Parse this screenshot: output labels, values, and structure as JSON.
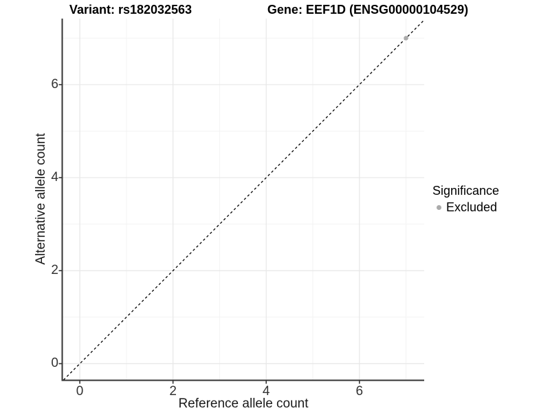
{
  "figure": {
    "title_left": "Variant: rs182032563",
    "title_right": "Gene: EEF1D (ENSG00000104529)"
  },
  "chart_data": {
    "type": "scatter",
    "xlabel": "Reference allele count",
    "ylabel": "Alternative allele count",
    "xlim": [
      -0.37,
      7.39
    ],
    "ylim": [
      -0.35,
      7.42
    ],
    "xticks": [
      0,
      2,
      4,
      6
    ],
    "yticks": [
      0,
      2,
      4,
      6
    ],
    "xticks_minor": [
      1,
      3,
      5,
      7
    ],
    "yticks_minor": [
      1,
      3,
      5,
      7
    ],
    "grid": "major+minor",
    "identity_line": {
      "style": "dashed",
      "color": "#000000",
      "description": "y = x diagonal reference line"
    },
    "series": [
      {
        "name": "Excluded",
        "color": "#ababab",
        "points": [
          {
            "x": 7,
            "y": 7
          }
        ]
      }
    ],
    "legend": {
      "title": "Significance",
      "position": "right",
      "entries": [
        {
          "label": "Excluded",
          "color": "#ababab"
        }
      ]
    }
  },
  "style": {
    "background": "#ffffff",
    "axis_line_color": "#333333",
    "tick_color": "#333333",
    "tick_label_color": "#333333",
    "grid_major_color": "#e7e7e7",
    "grid_minor_color": "#f3f3f3",
    "point_color": "#ababab",
    "title_color": "#000000"
  }
}
